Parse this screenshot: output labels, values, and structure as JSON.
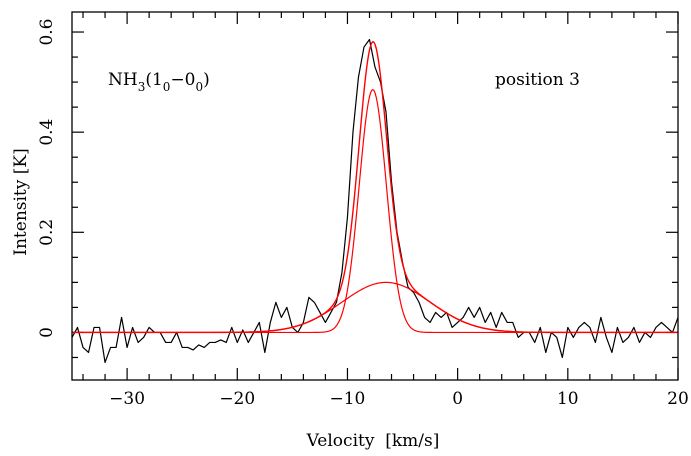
{
  "chart_data": {
    "type": "line",
    "title": "",
    "xlabel": "Velocity  [km/s]",
    "ylabel": "Intensity [K]",
    "xlim": [
      -35,
      20
    ],
    "ylim": [
      -0.095,
      0.64
    ],
    "x_ticks": [
      -30,
      -20,
      -10,
      0,
      10,
      20
    ],
    "y_ticks": [
      0,
      0.2,
      0.4,
      0.6
    ],
    "x_tick_labels": [
      "−30",
      "−20",
      "−10",
      "0",
      "10",
      "20"
    ],
    "y_tick_labels": [
      "0",
      "0.2",
      "0.4",
      "0.6"
    ],
    "annotations": {
      "molecule": {
        "base": "NH",
        "sub1": "3",
        "mid1": "(1",
        "sub2": "0",
        "mid2": "−0",
        "sub3": "0",
        "end": ")"
      },
      "position": "position 3"
    },
    "colors": {
      "observed": "#000000",
      "fit": "#ff0000",
      "axes": "#000000"
    },
    "series": [
      {
        "role": "observed",
        "x": [
          -35,
          -34.5,
          -34,
          -33.5,
          -33,
          -32.5,
          -32,
          -31.5,
          -31,
          -30.5,
          -30,
          -29.5,
          -29,
          -28.5,
          -28,
          -27.5,
          -27,
          -26.5,
          -26,
          -25.5,
          -25,
          -24.5,
          -24,
          -23.5,
          -23,
          -22.5,
          -22,
          -21.5,
          -21,
          -20.5,
          -20,
          -19.5,
          -19,
          -18.5,
          -18,
          -17.5,
          -17,
          -16.5,
          -16,
          -15.5,
          -15,
          -14.5,
          -14,
          -13.5,
          -13,
          -12.5,
          -12,
          -11.5,
          -11,
          -10.5,
          -10,
          -9.5,
          -9,
          -8.5,
          -8,
          -7.5,
          -7,
          -6.5,
          -6,
          -5.5,
          -5,
          -4.5,
          -4,
          -3.5,
          -3,
          -2.5,
          -2,
          -1.5,
          -1,
          -0.5,
          0,
          0.5,
          1,
          1.5,
          2,
          2.5,
          3,
          3.5,
          4,
          4.5,
          5,
          5.5,
          6,
          6.5,
          7,
          7.5,
          8,
          8.5,
          9,
          9.5,
          10,
          10.5,
          11,
          11.5,
          12,
          12.5,
          13,
          13.5,
          14,
          14.5,
          15,
          15.5,
          16,
          16.5,
          17,
          17.5,
          18,
          18.5,
          19,
          19.5,
          20
        ],
        "values": [
          -0.01,
          0.01,
          -0.03,
          -0.04,
          0.01,
          0.01,
          -0.06,
          -0.03,
          -0.03,
          0.03,
          -0.03,
          0.01,
          -0.02,
          -0.01,
          0.01,
          0.0,
          0.0,
          -0.02,
          -0.02,
          0.0,
          -0.03,
          -0.03,
          -0.035,
          -0.025,
          -0.03,
          -0.02,
          -0.02,
          -0.015,
          -0.02,
          0.01,
          -0.02,
          0.005,
          -0.02,
          0.0,
          0.02,
          -0.04,
          0.02,
          0.06,
          0.03,
          0.05,
          0.01,
          0.0,
          0.02,
          0.07,
          0.06,
          0.04,
          0.02,
          0.04,
          0.06,
          0.12,
          0.23,
          0.4,
          0.51,
          0.57,
          0.585,
          0.53,
          0.5,
          0.44,
          0.3,
          0.2,
          0.14,
          0.09,
          0.08,
          0.06,
          0.03,
          0.02,
          0.04,
          0.03,
          0.04,
          0.01,
          0.02,
          0.03,
          0.05,
          0.03,
          0.05,
          0.02,
          0.04,
          0.01,
          0.04,
          0.02,
          0.02,
          -0.01,
          0.0,
          0.0,
          -0.02,
          0.01,
          -0.04,
          0.0,
          -0.01,
          -0.05,
          0.01,
          -0.01,
          0.01,
          0.02,
          0.01,
          -0.02,
          0.03,
          -0.01,
          -0.04,
          0.01,
          -0.02,
          -0.01,
          0.01,
          -0.02,
          0.0,
          -0.01,
          0.01,
          0.02,
          0.01,
          0.0,
          0.03
        ]
      },
      {
        "role": "fit-narrow",
        "shape": "gaussian",
        "amplitude": 0.485,
        "center": -7.7,
        "fwhm": 2.9
      },
      {
        "role": "fit-broad",
        "shape": "gaussian",
        "amplitude": 0.1,
        "center": -6.5,
        "fwhm": 9.4
      },
      {
        "role": "fit-total",
        "shape": "sum"
      }
    ]
  }
}
